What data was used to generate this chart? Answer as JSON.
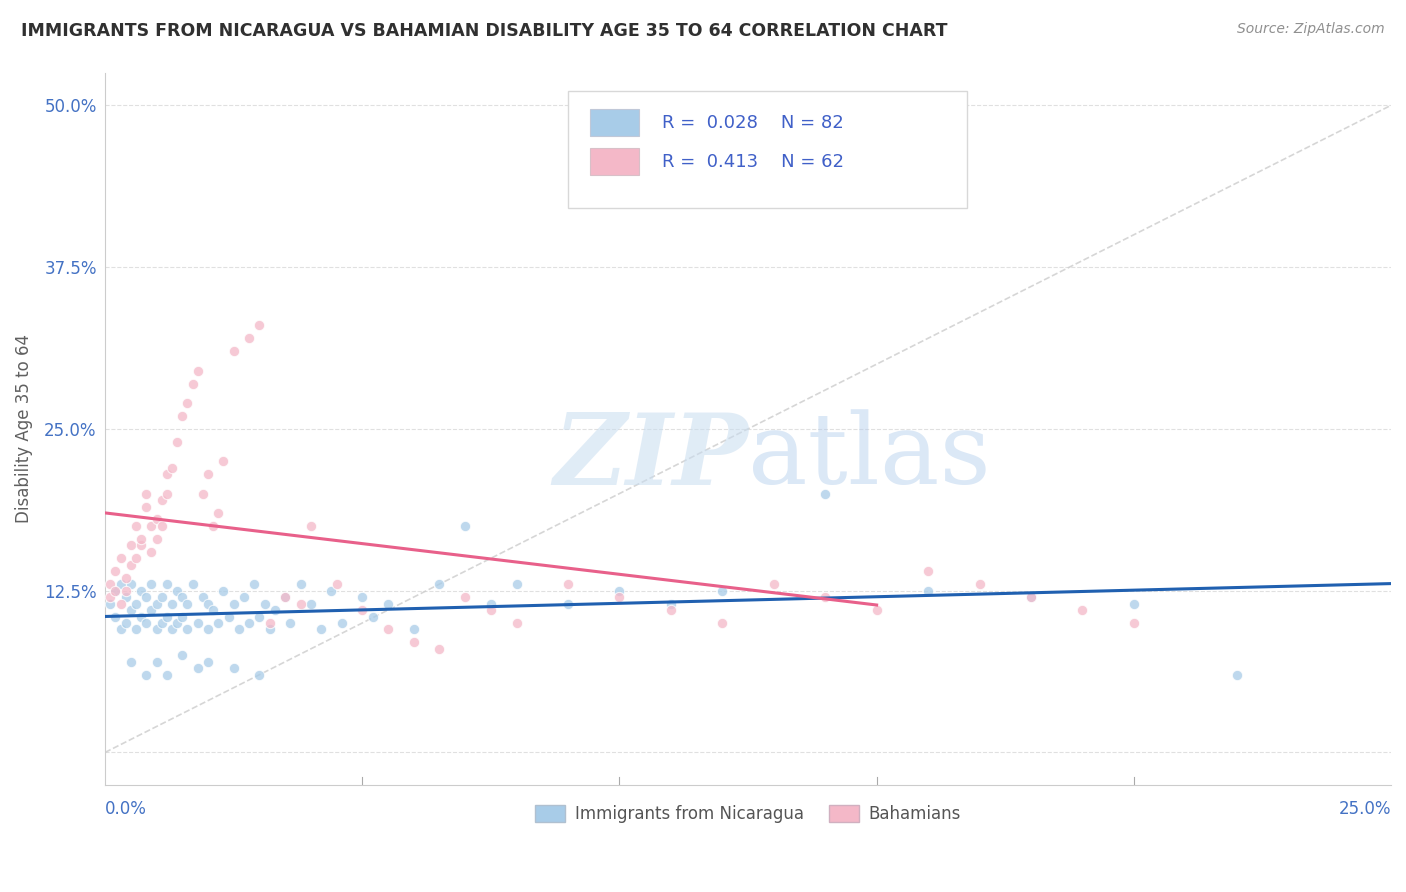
{
  "title": "IMMIGRANTS FROM NICARAGUA VS BAHAMIAN DISABILITY AGE 35 TO 64 CORRELATION CHART",
  "source": "Source: ZipAtlas.com",
  "ylabel": "Disability Age 35 to 64",
  "ytick_labels": [
    "12.5%",
    "25.0%",
    "37.5%",
    "50.0%"
  ],
  "ytick_values": [
    0.125,
    0.25,
    0.375,
    0.5
  ],
  "xlim": [
    0.0,
    0.25
  ],
  "ylim": [
    -0.025,
    0.525
  ],
  "blue_color": "#a8cce8",
  "pink_color": "#f4b8c8",
  "blue_line_color": "#2060b0",
  "pink_line_color": "#e8608a",
  "diagonal_line_color": "#cccccc",
  "legend_text_color": "#4060c8",
  "watermark_color": "#d8eaf8",
  "title_color": "#303030",
  "ylabel_color": "#606060",
  "source_color": "#909090",
  "tick_label_color": "#4472c4",
  "blue_scatter_x": [
    0.001,
    0.002,
    0.002,
    0.003,
    0.003,
    0.004,
    0.004,
    0.005,
    0.005,
    0.006,
    0.006,
    0.007,
    0.007,
    0.008,
    0.008,
    0.009,
    0.009,
    0.01,
    0.01,
    0.011,
    0.011,
    0.012,
    0.012,
    0.013,
    0.013,
    0.014,
    0.014,
    0.015,
    0.015,
    0.016,
    0.016,
    0.017,
    0.018,
    0.019,
    0.02,
    0.02,
    0.021,
    0.022,
    0.023,
    0.024,
    0.025,
    0.026,
    0.027,
    0.028,
    0.029,
    0.03,
    0.031,
    0.032,
    0.033,
    0.035,
    0.036,
    0.038,
    0.04,
    0.042,
    0.044,
    0.046,
    0.05,
    0.052,
    0.055,
    0.06,
    0.065,
    0.07,
    0.075,
    0.08,
    0.09,
    0.1,
    0.11,
    0.12,
    0.14,
    0.16,
    0.18,
    0.2,
    0.22,
    0.005,
    0.008,
    0.01,
    0.012,
    0.015,
    0.018,
    0.02,
    0.025,
    0.03
  ],
  "blue_scatter_y": [
    0.115,
    0.125,
    0.105,
    0.13,
    0.095,
    0.12,
    0.1,
    0.11,
    0.13,
    0.115,
    0.095,
    0.125,
    0.105,
    0.12,
    0.1,
    0.13,
    0.11,
    0.115,
    0.095,
    0.12,
    0.1,
    0.13,
    0.105,
    0.115,
    0.095,
    0.125,
    0.1,
    0.12,
    0.105,
    0.115,
    0.095,
    0.13,
    0.1,
    0.12,
    0.115,
    0.095,
    0.11,
    0.1,
    0.125,
    0.105,
    0.115,
    0.095,
    0.12,
    0.1,
    0.13,
    0.105,
    0.115,
    0.095,
    0.11,
    0.12,
    0.1,
    0.13,
    0.115,
    0.095,
    0.125,
    0.1,
    0.12,
    0.105,
    0.115,
    0.095,
    0.13,
    0.175,
    0.115,
    0.13,
    0.115,
    0.125,
    0.115,
    0.125,
    0.2,
    0.125,
    0.12,
    0.115,
    0.06,
    0.07,
    0.06,
    0.07,
    0.06,
    0.075,
    0.065,
    0.07,
    0.065,
    0.06
  ],
  "pink_scatter_x": [
    0.001,
    0.001,
    0.002,
    0.002,
    0.003,
    0.003,
    0.004,
    0.004,
    0.005,
    0.005,
    0.006,
    0.006,
    0.007,
    0.007,
    0.008,
    0.008,
    0.009,
    0.009,
    0.01,
    0.01,
    0.011,
    0.011,
    0.012,
    0.012,
    0.013,
    0.014,
    0.015,
    0.016,
    0.017,
    0.018,
    0.019,
    0.02,
    0.021,
    0.022,
    0.023,
    0.025,
    0.028,
    0.03,
    0.032,
    0.035,
    0.038,
    0.04,
    0.045,
    0.05,
    0.055,
    0.06,
    0.065,
    0.07,
    0.075,
    0.08,
    0.09,
    0.1,
    0.11,
    0.12,
    0.13,
    0.14,
    0.15,
    0.16,
    0.17,
    0.18,
    0.19,
    0.2
  ],
  "pink_scatter_y": [
    0.12,
    0.13,
    0.14,
    0.125,
    0.15,
    0.115,
    0.135,
    0.125,
    0.16,
    0.145,
    0.175,
    0.15,
    0.16,
    0.165,
    0.19,
    0.2,
    0.175,
    0.155,
    0.165,
    0.18,
    0.195,
    0.175,
    0.2,
    0.215,
    0.22,
    0.24,
    0.26,
    0.27,
    0.285,
    0.295,
    0.2,
    0.215,
    0.175,
    0.185,
    0.225,
    0.31,
    0.32,
    0.33,
    0.1,
    0.12,
    0.115,
    0.175,
    0.13,
    0.11,
    0.095,
    0.085,
    0.08,
    0.12,
    0.11,
    0.1,
    0.13,
    0.12,
    0.11,
    0.1,
    0.13,
    0.12,
    0.11,
    0.14,
    0.13,
    0.12,
    0.11,
    0.1
  ]
}
